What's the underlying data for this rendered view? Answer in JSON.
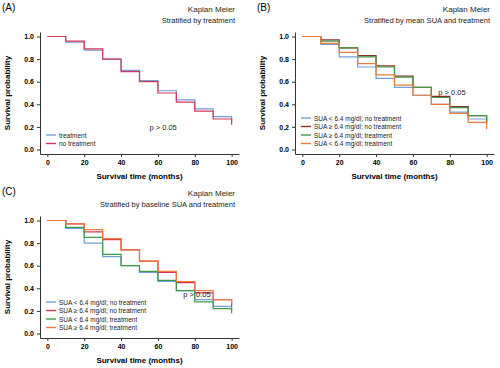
{
  "chart_data": [
    {
      "type": "line",
      "panel_label": "(A)",
      "title": "Kaplan Meier",
      "subtitle": "Stratified by treatment",
      "x_label": "Survival time (months)",
      "y_label": "Survival probability",
      "annotation": "p > 0.05",
      "line_style": "step",
      "legend": "lower left",
      "grid": false,
      "x": [
        0,
        10,
        20,
        30,
        40,
        50,
        60,
        70,
        80,
        90,
        100
      ],
      "series": [
        {
          "name": "treatment",
          "color": "#6f9fd8",
          "values": [
            1.0,
            0.95,
            0.88,
            0.8,
            0.7,
            0.61,
            0.52,
            0.44,
            0.36,
            0.29,
            0.24
          ]
        },
        {
          "name": "no treatment",
          "color": "#d6365a",
          "values": [
            1.0,
            0.96,
            0.89,
            0.8,
            0.69,
            0.6,
            0.5,
            0.42,
            0.34,
            0.27,
            0.22
          ]
        }
      ],
      "xlim": [
        -4,
        104
      ],
      "xticks": [
        0,
        20,
        40,
        60,
        80,
        100
      ],
      "ylim": [
        -0.04,
        1.04
      ],
      "yticks": [
        {
          "value": 0,
          "label": "0.0"
        },
        0.2,
        0.4,
        0.6,
        0.8,
        {
          "value": 1,
          "label": "1.0"
        }
      ]
    },
    {
      "type": "line",
      "panel_label": "(B)",
      "title": "Kaplan Meier",
      "subtitle": "Stratified by mean SUA and treatment",
      "x_label": "Survival time (months)",
      "y_label": "Survival probability",
      "annotation": "p > 0.05",
      "line_style": "step",
      "legend": "lower left",
      "grid": false,
      "x": [
        0,
        10,
        20,
        30,
        40,
        50,
        60,
        70,
        80,
        90,
        100
      ],
      "series": [
        {
          "name": "SUA < 6.4 mg/dl; no treatment",
          "color": "#6f9fd8",
          "values": [
            1.0,
            0.93,
            0.82,
            0.73,
            0.63,
            0.55,
            0.48,
            0.4,
            0.33,
            0.27,
            0.22
          ]
        },
        {
          "name": "SUA ≥ 6.4 mg/dl; no treatment",
          "color": "#8e2f2a",
          "values": [
            1.0,
            0.97,
            0.9,
            0.83,
            0.74,
            0.65,
            0.55,
            0.47,
            0.38,
            0.3,
            0.24
          ]
        },
        {
          "name": "SUA ≥ 6.4 mg/dl; treatment",
          "color": "#3f9a4a",
          "values": [
            1.0,
            0.96,
            0.9,
            0.82,
            0.73,
            0.64,
            0.55,
            0.46,
            0.37,
            0.3,
            0.25
          ]
        },
        {
          "name": "SUA < 6.4 mg/dl; treatment",
          "color": "#f07a3a",
          "values": [
            1.0,
            0.94,
            0.86,
            0.76,
            0.66,
            0.57,
            0.48,
            0.4,
            0.32,
            0.24,
            0.18
          ]
        }
      ],
      "xlim": [
        -4,
        104
      ],
      "xticks": [
        0,
        20,
        40,
        60,
        80,
        100
      ],
      "ylim": [
        -0.04,
        1.04
      ],
      "yticks": [
        {
          "value": 0,
          "label": "0.0"
        },
        0.2,
        0.4,
        0.6,
        0.8,
        {
          "value": 1,
          "label": "1.0"
        }
      ]
    },
    {
      "type": "line",
      "panel_label": "(C)",
      "title": "Kaplan Meier",
      "subtitle": "Stratified by baseline SUA and treatment",
      "x_label": "Survival time (months)",
      "y_label": "Survival probability",
      "annotation": "p > 0.05",
      "line_style": "step",
      "legend": "lower left",
      "grid": false,
      "x": [
        0,
        10,
        20,
        30,
        40,
        50,
        60,
        70,
        80,
        90,
        100
      ],
      "series": [
        {
          "name": "SUA < 6.4 mg/dl; no treatment",
          "color": "#6f9fd8",
          "values": [
            1.0,
            0.93,
            0.8,
            0.68,
            0.6,
            0.54,
            0.46,
            0.38,
            0.3,
            0.24,
            0.2
          ]
        },
        {
          "name": "SUA ≥ 6.4 mg/dl; no treatment",
          "color": "#d6365a",
          "values": [
            1.0,
            0.97,
            0.9,
            0.83,
            0.74,
            0.64,
            0.54,
            0.45,
            0.36,
            0.3,
            0.24
          ]
        },
        {
          "name": "SUA < 6.4 mg/dl; treatment",
          "color": "#3f9a4a",
          "values": [
            1.0,
            0.94,
            0.85,
            0.7,
            0.6,
            0.55,
            0.47,
            0.38,
            0.28,
            0.22,
            0.18
          ]
        },
        {
          "name": "SUA ≥ 6.4 mg/dl; treatment",
          "color": "#f07a3a",
          "values": [
            1.0,
            0.97,
            0.92,
            0.84,
            0.74,
            0.64,
            0.55,
            0.46,
            0.38,
            0.3,
            0.26
          ]
        }
      ],
      "xlim": [
        -4,
        104
      ],
      "xticks": [
        0,
        20,
        40,
        60,
        80,
        100
      ],
      "ylim": [
        -0.04,
        1.04
      ],
      "yticks": [
        {
          "value": 0,
          "label": "0.0"
        },
        0.2,
        0.4,
        0.6,
        0.8,
        {
          "value": 1,
          "label": "1.0"
        }
      ]
    }
  ]
}
